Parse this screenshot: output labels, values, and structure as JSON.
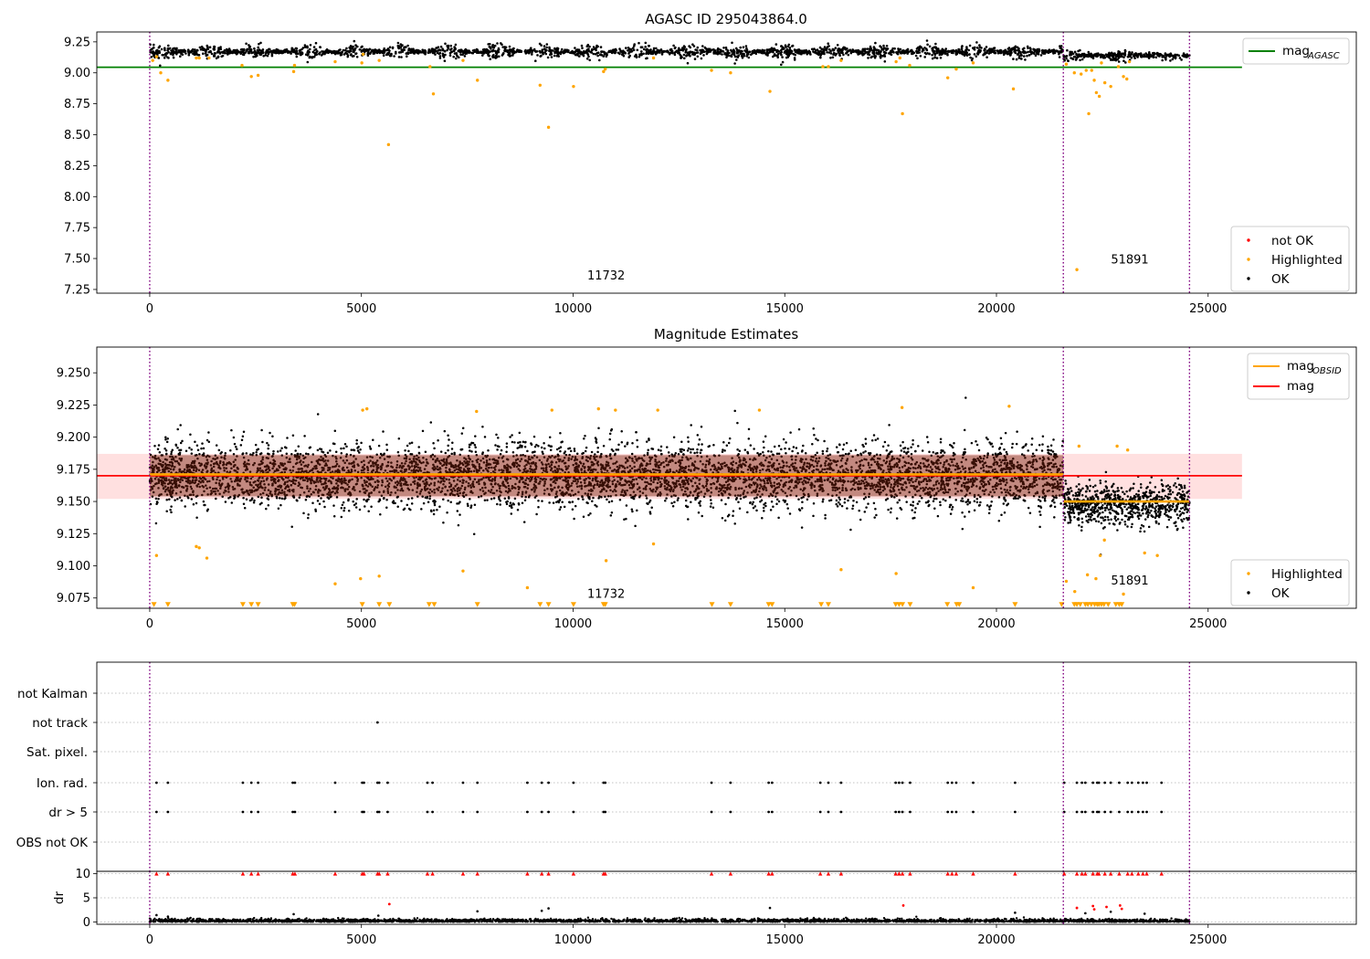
{
  "chart_data": [
    {
      "type": "scatter",
      "title": "AGASC ID 295043864.0",
      "xlim": [
        -1250,
        28500
      ],
      "ylim": [
        7.22,
        9.33
      ],
      "x_ticks": [
        0,
        5000,
        10000,
        15000,
        20000,
        25000
      ],
      "y_ticks": [
        7.25,
        7.5,
        7.75,
        8.0,
        8.25,
        8.5,
        8.75,
        9.0,
        9.25
      ],
      "y_tick_labels": [
        "7.25",
        "7.50",
        "7.75",
        "8.00",
        "8.25",
        "8.50",
        "8.75",
        "9.00",
        "9.25"
      ],
      "obsid_boundaries": [
        0,
        21580,
        24560
      ],
      "obsid_labels": [
        {
          "text": "11732",
          "x": 10780,
          "y": 7.33
        },
        {
          "text": "51891",
          "x": 23150,
          "y": 7.46
        }
      ],
      "reference_lines": [
        {
          "name": "mag_AGASC",
          "y": 9.045,
          "x_range": [
            -1250,
            25800
          ],
          "color": "#008000"
        }
      ],
      "ok_band": [
        {
          "x_range": [
            0,
            21580
          ],
          "center": 9.17,
          "spread": 0.045
        },
        {
          "x_range": [
            21580,
            24560
          ],
          "center": 9.14,
          "spread": 0.035
        }
      ],
      "highlighted_points": [
        [
          70,
          9.1
        ],
        [
          160,
          9.13
        ],
        [
          260,
          9.0
        ],
        [
          430,
          8.94
        ],
        [
          1100,
          9.12
        ],
        [
          1170,
          9.12
        ],
        [
          1400,
          9.12
        ],
        [
          2180,
          9.06
        ],
        [
          2400,
          8.97
        ],
        [
          2560,
          8.98
        ],
        [
          3400,
          9.01
        ],
        [
          3420,
          9.06
        ],
        [
          4380,
          9.09
        ],
        [
          5010,
          9.08
        ],
        [
          5040,
          9.15
        ],
        [
          5420,
          9.1
        ],
        [
          5640,
          8.42
        ],
        [
          6620,
          9.05
        ],
        [
          6700,
          8.83
        ],
        [
          7400,
          9.1
        ],
        [
          7740,
          8.94
        ],
        [
          9220,
          8.9
        ],
        [
          9420,
          8.56
        ],
        [
          10010,
          8.89
        ],
        [
          10720,
          9.01
        ],
        [
          10760,
          9.03
        ],
        [
          11900,
          9.12
        ],
        [
          13270,
          9.02
        ],
        [
          13720,
          9.0
        ],
        [
          14650,
          8.85
        ],
        [
          15900,
          9.05
        ],
        [
          16030,
          9.05
        ],
        [
          16330,
          9.1
        ],
        [
          17630,
          9.09
        ],
        [
          17720,
          9.12
        ],
        [
          17780,
          8.67
        ],
        [
          17950,
          9.06
        ],
        [
          18850,
          8.96
        ],
        [
          19050,
          9.03
        ],
        [
          19450,
          9.08
        ],
        [
          20400,
          8.87
        ],
        [
          21650,
          9.07
        ],
        [
          21840,
          9.0
        ],
        [
          21900,
          7.41
        ],
        [
          22000,
          8.99
        ],
        [
          22120,
          9.02
        ],
        [
          22180,
          8.67
        ],
        [
          22250,
          9.02
        ],
        [
          22310,
          8.94
        ],
        [
          22360,
          8.84
        ],
        [
          22430,
          8.81
        ],
        [
          22480,
          9.08
        ],
        [
          22560,
          8.92
        ],
        [
          22700,
          8.89
        ],
        [
          22880,
          9.05
        ],
        [
          23000,
          8.97
        ],
        [
          23080,
          8.95
        ],
        [
          23140,
          9.09
        ]
      ],
      "not_ok_points": [],
      "legend": [
        {
          "label": "mag",
          "sub": "AGASC",
          "color": "#008000"
        }
      ],
      "legend_points": [
        {
          "label": "not OK",
          "color": "#ff0000"
        },
        {
          "label": "Highlighted",
          "color": "#ffa500"
        },
        {
          "label": "OK",
          "color": "#000000"
        }
      ]
    },
    {
      "type": "scatter",
      "title": "Magnitude Estimates",
      "xlim": [
        -1250,
        28500
      ],
      "ylim": [
        9.067,
        9.27
      ],
      "x_ticks": [
        0,
        5000,
        10000,
        15000,
        20000,
        25000
      ],
      "y_ticks": [
        9.075,
        9.1,
        9.125,
        9.15,
        9.175,
        9.2,
        9.225,
        9.25
      ],
      "y_tick_labels": [
        "9.075",
        "9.100",
        "9.125",
        "9.150",
        "9.175",
        "9.200",
        "9.225",
        "9.250"
      ],
      "obsid_boundaries": [
        0,
        21580,
        24560
      ],
      "obsid_labels": [
        {
          "text": "11732",
          "x": 10780,
          "y": 9.075
        },
        {
          "text": "51891",
          "x": 23150,
          "y": 9.0855
        }
      ],
      "mag_line": {
        "y": 9.17,
        "x_range": [
          -1250,
          25800
        ],
        "color": "#ff0000"
      },
      "mag_band": {
        "y_range": [
          9.152,
          9.187
        ],
        "x_range": [
          -1250,
          25800
        ]
      },
      "mag_obsid": [
        {
          "x_range": [
            0,
            21580
          ],
          "y": 9.171
        },
        {
          "x_range": [
            21580,
            24560
          ],
          "y": 9.15
        }
      ],
      "ok_band": [
        {
          "x_range": [
            0,
            21580
          ],
          "center": 9.17,
          "spread": 0.02
        },
        {
          "x_range": [
            21580,
            24560
          ],
          "center": 9.148,
          "spread": 0.013
        }
      ],
      "highlighted_points": [
        [
          160,
          9.108
        ],
        [
          1100,
          9.115
        ],
        [
          1170,
          9.114
        ],
        [
          1350,
          9.106
        ],
        [
          4380,
          9.086
        ],
        [
          4980,
          9.09
        ],
        [
          5030,
          9.221
        ],
        [
          5130,
          9.222
        ],
        [
          5420,
          9.092
        ],
        [
          7400,
          9.096
        ],
        [
          7720,
          9.22
        ],
        [
          8920,
          9.083
        ],
        [
          9500,
          9.221
        ],
        [
          10600,
          9.222
        ],
        [
          10780,
          9.104
        ],
        [
          11000,
          9.221
        ],
        [
          11900,
          9.117
        ],
        [
          12000,
          9.221
        ],
        [
          14400,
          9.221
        ],
        [
          16330,
          9.097
        ],
        [
          17630,
          9.094
        ],
        [
          17770,
          9.223
        ],
        [
          19450,
          9.083
        ],
        [
          20300,
          9.224
        ],
        [
          21650,
          9.088
        ],
        [
          21850,
          9.08
        ],
        [
          21950,
          9.193
        ],
        [
          22150,
          9.093
        ],
        [
          22350,
          9.09
        ],
        [
          22450,
          9.108
        ],
        [
          22550,
          9.12
        ],
        [
          22850,
          9.193
        ],
        [
          23000,
          9.078
        ],
        [
          23100,
          9.19
        ],
        [
          23500,
          9.11
        ],
        [
          23800,
          9.108
        ]
      ],
      "low_markers_x": [
        100,
        430,
        2200,
        2400,
        2560,
        3380,
        3420,
        5020,
        5420,
        5660,
        6600,
        6720,
        7740,
        9220,
        9420,
        10010,
        10720,
        10760,
        13280,
        13720,
        14620,
        14700,
        15860,
        16030,
        17620,
        17700,
        17780,
        17960,
        18840,
        19060,
        19120,
        20440,
        21540,
        21840,
        21900,
        21980,
        22100,
        22160,
        22240,
        22320,
        22380,
        22420,
        22480,
        22540,
        22640,
        22820,
        22900,
        22960
      ],
      "low_marker_y": 9.07,
      "legend": [
        {
          "label": "mag",
          "sub": "OBSID",
          "color": "#ffa500"
        },
        {
          "label": "mag",
          "sub": "",
          "color": "#ff0000"
        }
      ],
      "legend_points": [
        {
          "label": "Highlighted",
          "color": "#ffa500"
        },
        {
          "label": "OK",
          "color": "#000000"
        }
      ]
    },
    {
      "type": "scatter",
      "title": "",
      "xlim": [
        -1250,
        28500
      ],
      "flag_rows": [
        "not Kalman",
        "not track",
        "Sat. pixel.",
        "Ion. rad.",
        "dr > 5",
        "OBS not OK"
      ],
      "flag_points": {
        "not Kalman": [],
        "not track": [
          5380
        ],
        "Sat. pixel.": [],
        "Ion. rad.": [
          160,
          430,
          2200,
          2400,
          2560,
          3380,
          3430,
          4380,
          5020,
          5060,
          5380,
          5420,
          5620,
          6560,
          6680,
          7400,
          7740,
          8920,
          9260,
          9420,
          10010,
          10720,
          10760,
          13270,
          13720,
          14620,
          14700,
          15840,
          16030,
          16330,
          17620,
          17700,
          17780,
          17960,
          18850,
          18950,
          19050,
          19450,
          20440,
          21600,
          21900,
          22020,
          22100,
          22280,
          22380,
          22420,
          22560,
          22700,
          22900,
          23100,
          23200,
          23350,
          23460,
          23550,
          23900
        ],
        "dr > 5": [
          160,
          430,
          2200,
          2400,
          2560,
          3380,
          3430,
          4380,
          5020,
          5060,
          5380,
          5420,
          5620,
          6560,
          6680,
          7400,
          7740,
          8920,
          9260,
          9420,
          10010,
          10720,
          10760,
          13270,
          13720,
          14620,
          14700,
          15840,
          16030,
          16330,
          17620,
          17700,
          17780,
          17960,
          18850,
          18950,
          19050,
          19450,
          20440,
          21600,
          21900,
          22020,
          22100,
          22280,
          22380,
          22420,
          22560,
          22700,
          22900,
          23100,
          23200,
          23350,
          23460,
          23550,
          23900
        ],
        "OBS not OK": []
      },
      "obsid_boundaries": [
        0,
        21580,
        24560
      ]
    },
    {
      "type": "scatter",
      "title": "",
      "xlim": [
        -1250,
        28500
      ],
      "ylim": [
        -0.5,
        10.5
      ],
      "x_ticks": [
        0,
        5000,
        10000,
        15000,
        20000,
        25000
      ],
      "y_ticks": [
        0,
        5,
        10
      ],
      "ylabel": "dr",
      "obsid_boundaries": [
        0,
        21580,
        24560
      ],
      "capped_x": [
        160,
        430,
        2200,
        2400,
        2560,
        3380,
        3430,
        4380,
        5020,
        5060,
        5380,
        5420,
        5620,
        6560,
        6680,
        7400,
        7740,
        8920,
        9260,
        9420,
        10010,
        10720,
        10760,
        13270,
        13720,
        14620,
        14700,
        15840,
        16030,
        16330,
        17620,
        17700,
        17780,
        17960,
        18850,
        18950,
        19050,
        19450,
        20440,
        21600,
        21900,
        22020,
        22100,
        22280,
        22380,
        22420,
        22560,
        22700,
        22900,
        23100,
        23200,
        23350,
        23460,
        23550,
        23900
      ],
      "capped_y": 10,
      "red_points": [
        [
          5660,
          3.7
        ],
        [
          17800,
          3.4
        ],
        [
          22280,
          3.3
        ],
        [
          22310,
          2.6
        ],
        [
          22600,
          3.1
        ],
        [
          22920,
          3.4
        ],
        [
          22960,
          2.7
        ],
        [
          21900,
          2.9
        ]
      ],
      "black_outliers": [
        [
          160,
          1.4
        ],
        [
          430,
          1.1
        ],
        [
          3400,
          1.6
        ],
        [
          5400,
          1.3
        ],
        [
          7740,
          2.2
        ],
        [
          9260,
          2.3
        ],
        [
          9420,
          2.8
        ],
        [
          14650,
          2.9
        ],
        [
          20440,
          1.9
        ],
        [
          22100,
          1.8
        ],
        [
          22700,
          2.1
        ],
        [
          23500,
          1.7
        ]
      ],
      "typical_dr": [
        0.0,
        0.8
      ]
    }
  ]
}
